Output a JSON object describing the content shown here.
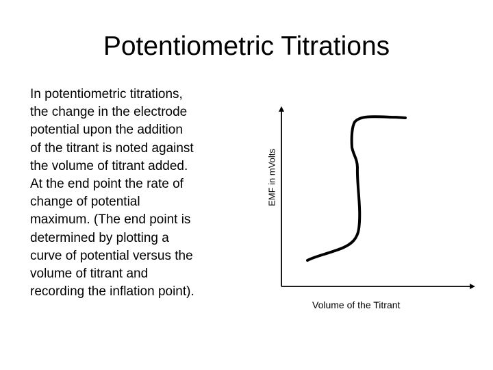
{
  "slide": {
    "title": "Potentiometric Titrations",
    "body": "In potentiometric titrations,\nthe change in the electrode\npotential upon the addition\nof the titrant is noted against\nthe volume of titrant added.\nAt the end point the rate of\nchange of potential\nmaximum. (The end point is\ndetermined by plotting a\ncurve of potential versus the\nvolume of titrant and\nrecording the inflation point)."
  },
  "diagram": {
    "y_axis_label": "EMF in mVolts",
    "x_axis_label": "Volume of the Titrant",
    "line_color": "#000000"
  }
}
